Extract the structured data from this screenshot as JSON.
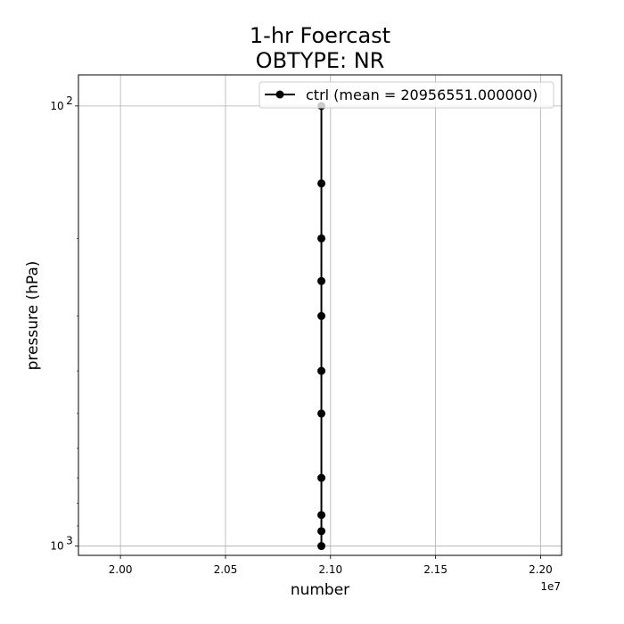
{
  "title_line1": "1-hr Foercast",
  "title_line2": "OBTYPE: NR",
  "chart_data": {
    "type": "line",
    "title": "1-hr Foercast\nOBTYPE: NR",
    "xlabel": "number",
    "ylabel": "pressure (hPa)",
    "x_offset_label": "1e7",
    "xscale": "linear",
    "yscale": "log",
    "y_inverted": true,
    "xlim": [
      19800000.0,
      22100000.0
    ],
    "ylim": [
      1050,
      85
    ],
    "x_ticks": [
      20000000.0,
      20500000.0,
      21000000.0,
      21500000.0,
      22000000.0
    ],
    "x_tick_labels": [
      "2.00",
      "2.05",
      "2.10",
      "2.15",
      "2.20"
    ],
    "y_major_ticks": [
      100,
      1000
    ],
    "y_tick_labels": [
      {
        "base": "10",
        "exp": "2"
      },
      {
        "base": "10",
        "exp": "3"
      }
    ],
    "y_minor_ticks": [
      200,
      300,
      400,
      500,
      600,
      700,
      800,
      900
    ],
    "grid": true,
    "legend_placement": "top-right",
    "series": [
      {
        "name": "ctrl (mean = 20956551.000000)",
        "color": "#000000",
        "marker": "circle",
        "points": [
          {
            "x": 20956551,
            "y": 1000
          },
          {
            "x": 20956551,
            "y": 925
          },
          {
            "x": 20956551,
            "y": 850
          },
          {
            "x": 20956551,
            "y": 700
          },
          {
            "x": 20956551,
            "y": 500
          },
          {
            "x": 20956551,
            "y": 400
          },
          {
            "x": 20956551,
            "y": 300
          },
          {
            "x": 20956551,
            "y": 250
          },
          {
            "x": 20956551,
            "y": 200
          },
          {
            "x": 20956551,
            "y": 150
          },
          {
            "x": 20956551,
            "y": 100
          }
        ]
      }
    ]
  }
}
